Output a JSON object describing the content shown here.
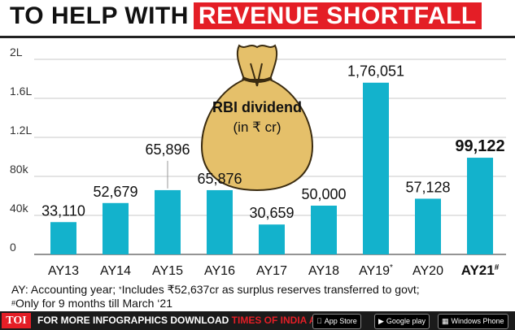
{
  "title": {
    "prefix": "TO HELP WITH",
    "highlight": "REVENUE SHORTFALL"
  },
  "bag": {
    "line1": "RBI dividend",
    "line2": "(in ₹ cr)"
  },
  "chart_data": {
    "type": "bar",
    "categories": [
      "AY13",
      "AY14",
      "AY15",
      "AY16",
      "AY17",
      "AY18",
      "AY19",
      "AY20",
      "AY21"
    ],
    "category_marks": [
      "",
      "",
      "",
      "",
      "",
      "",
      "*",
      "",
      "#"
    ],
    "values": [
      33110,
      52679,
      65896,
      65876,
      30659,
      50000,
      176051,
      57128,
      99122
    ],
    "value_labels": [
      "33,110",
      "52,679",
      "65,896",
      "65,876",
      "30,659",
      "50,000",
      "1,76,051",
      "57,128",
      "99,122"
    ],
    "yticks": [
      0,
      40000,
      80000,
      120000,
      160000,
      200000
    ],
    "ytick_labels": [
      "0",
      "40k",
      "80k",
      "1.2L",
      "1.6L",
      "2L"
    ],
    "ylim": [
      0,
      200000
    ],
    "bar_color": "#13b2cc",
    "grid": true,
    "highlight_index": 8
  },
  "footnote": {
    "line1_a": "AY: Accounting year; ",
    "line1_mark": "*",
    "line1_b": "Includes ₹52,637cr as surplus reserves transferred to govt;",
    "line2_mark": "#",
    "line2_b": "Only for 9 months till March ‘21"
  },
  "footer": {
    "logo": "TOI",
    "text_a": "FOR MORE  INFOGRAPHICS DOWNLOAD ",
    "text_b": "TIMES OF INDIA APP",
    "stores": [
      "App Store",
      "Google play",
      "Windows Phone"
    ]
  },
  "colors": {
    "accent": "#e41e26",
    "bag": "#e5c06a",
    "bag_outline": "#3a2b10"
  }
}
